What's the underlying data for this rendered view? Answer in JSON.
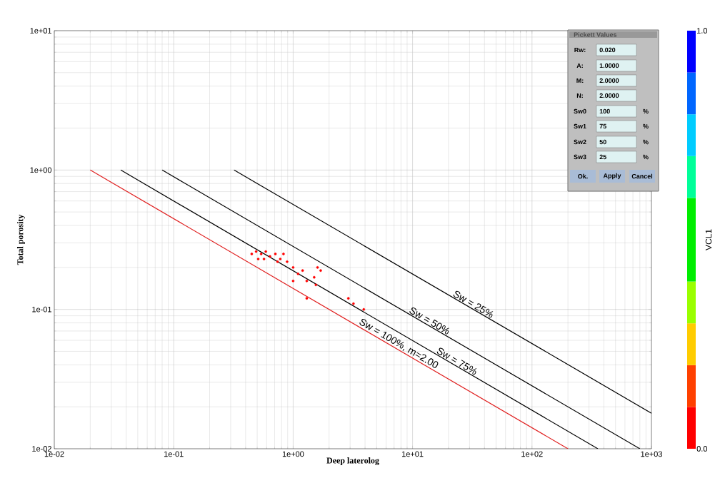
{
  "chart_data": {
    "type": "scatter",
    "xlabel": "Deep laterolog",
    "ylabel": "Total porosity",
    "clabel": "VCL1",
    "log": "xy",
    "grid": true,
    "xlim": [
      0.01,
      1000
    ],
    "ylim": [
      0.01,
      10
    ],
    "xticks": [
      {
        "value": 0.01,
        "label": "1e-02"
      },
      {
        "value": 0.1,
        "label": "1e-01"
      },
      {
        "value": 1,
        "label": "1e+00"
      },
      {
        "value": 10,
        "label": "1e+01"
      },
      {
        "value": 100,
        "label": "1e+02"
      },
      {
        "value": 1000,
        "label": "1e+03"
      }
    ],
    "yticks": [
      {
        "value": 0.01,
        "label": "1e-02"
      },
      {
        "value": 0.1,
        "label": "1e-01"
      },
      {
        "value": 1,
        "label": "1e+00"
      },
      {
        "value": 10,
        "label": "1e+01"
      }
    ],
    "clim": [
      0,
      1
    ],
    "cticks": [
      {
        "value": 0,
        "label": "0.0"
      },
      {
        "value": 1,
        "label": "1.0"
      }
    ],
    "series": [
      {
        "marker": "circle",
        "color": "#ff0000",
        "x": [
          0.45,
          0.49,
          0.54,
          0.59,
          0.64,
          0.71,
          0.78,
          0.83,
          0.51,
          0.57,
          0.74,
          0.89,
          1.0,
          1.1,
          1.2,
          1.3,
          1.0,
          1.5,
          1.6,
          1.7,
          1.55,
          1.3,
          2.9,
          3.2,
          3.9
        ],
        "values": [
          0.25,
          0.26,
          0.25,
          0.26,
          0.24,
          0.25,
          0.23,
          0.25,
          0.23,
          0.23,
          0.22,
          0.22,
          0.2,
          0.18,
          0.19,
          0.16,
          0.16,
          0.17,
          0.2,
          0.19,
          0.15,
          0.12,
          0.12,
          0.11,
          0.1
        ],
        "cvalues": [
          0.05,
          0.05,
          0.05,
          0.05,
          0.05,
          0.05,
          0.05,
          0.05,
          0.05,
          0.05,
          0.05,
          0.05,
          0.05,
          0.05,
          0.05,
          0.05,
          0.05,
          0.05,
          0.05,
          0.05,
          0.05,
          0.05,
          0.05,
          0.05,
          0.05
        ]
      },
      {
        "type": "line",
        "marker": "none",
        "name": "Sw = 100%, m=2.00",
        "color": "#e02020",
        "x": [
          0.02,
          200
        ],
        "values": [
          1,
          0.01
        ]
      },
      {
        "type": "line",
        "marker": "none",
        "name": "Sw = 75%",
        "color": "#000000",
        "x": [
          0.036,
          356
        ],
        "values": [
          1,
          0.01
        ]
      },
      {
        "type": "line",
        "marker": "none",
        "name": "Sw = 50%",
        "color": "#000000",
        "x": [
          0.08,
          800
        ],
        "values": [
          1,
          0.01
        ]
      },
      {
        "type": "line",
        "marker": "none",
        "name": "Sw = 25%",
        "color": "#000000",
        "x": [
          0.32,
          1000
        ],
        "values": [
          1,
          0.018
        ]
      }
    ],
    "annotations": [
      "Pickett Values",
      "Rw:",
      "0.020",
      "A:",
      "1.0000",
      "M:",
      "2.0000",
      "N:",
      "2.0000",
      "Sw0",
      "100",
      "%",
      "Sw1",
      "75",
      "%",
      "Sw2",
      "50",
      "%",
      "Sw3",
      "25",
      "%",
      "Ok.",
      "Apply",
      "Cancel"
    ]
  }
}
